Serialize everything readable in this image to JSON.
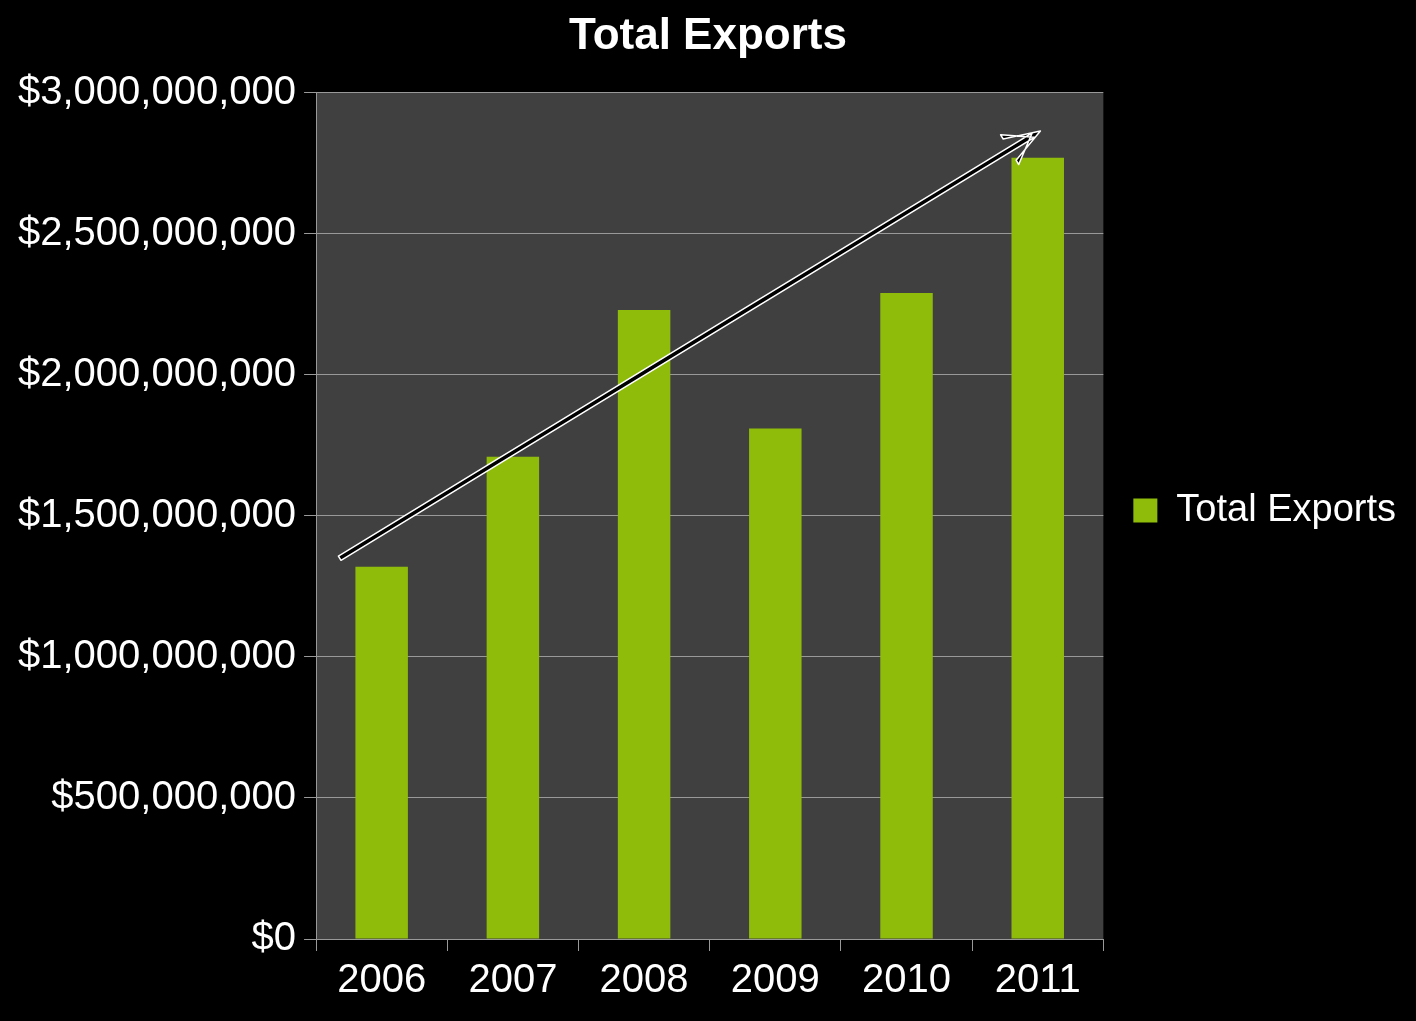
{
  "chart_data": {
    "type": "bar",
    "title": "Total Exports",
    "categories": [
      "2006",
      "2007",
      "2008",
      "2009",
      "2010",
      "2011"
    ],
    "series": [
      {
        "name": "Total Exports",
        "color": "#8fbc0a",
        "values": [
          1320000000,
          1710000000,
          2230000000,
          1810000000,
          2290000000,
          2770000000
        ]
      }
    ],
    "ylim": [
      0,
      3000000000
    ],
    "yticks": [
      {
        "value": 0,
        "label": "$0"
      },
      {
        "value": 500000000,
        "label": "$500,000,000"
      },
      {
        "value": 1000000000,
        "label": "$1,000,000,000"
      },
      {
        "value": 1500000000,
        "label": "$1,500,000,000"
      },
      {
        "value": 2000000000,
        "label": "$2,000,000,000"
      },
      {
        "value": 2500000000,
        "label": "$2,500,000,000"
      },
      {
        "value": 3000000000,
        "label": "$3,000,000,000"
      }
    ],
    "grid": "y",
    "legend": "right"
  }
}
